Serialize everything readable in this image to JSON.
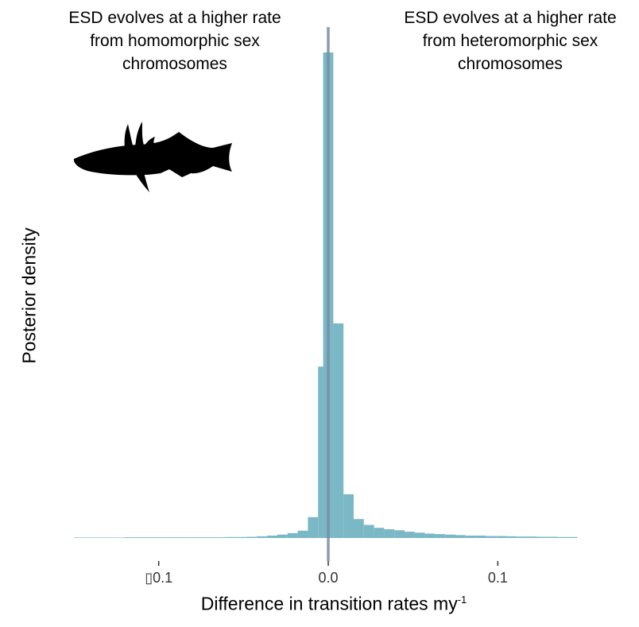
{
  "chart_data": {
    "type": "bar",
    "subtype": "histogram",
    "annotations": {
      "left": [
        "ESD evolves at a higher rate",
        "from homomorphic sex",
        "chromosomes"
      ],
      "right": [
        "ESD evolves at a higher rate",
        "from heteromorphic sex",
        "chromosomes"
      ]
    },
    "xlabel": "Difference in transition rates my",
    "xlabel_superscript": "-1",
    "ylabel": "Posterior density",
    "xlim": [
      -0.15,
      0.15
    ],
    "ylim": [
      0,
      100
    ],
    "x_ticks": [
      {
        "value": -0.1,
        "label": "▯0.1"
      },
      {
        "value": 0.0,
        "label": "0.0"
      },
      {
        "value": 0.1,
        "label": "0.1"
      }
    ],
    "grid": false,
    "bin_width": 0.006,
    "bins": [
      {
        "x0": -0.15,
        "value": 0.1
      },
      {
        "x0": -0.144,
        "value": 0.1
      },
      {
        "x0": -0.138,
        "value": 0.1
      },
      {
        "x0": -0.132,
        "value": 0.1
      },
      {
        "x0": -0.126,
        "value": 0.1
      },
      {
        "x0": -0.12,
        "value": 0.15
      },
      {
        "x0": -0.114,
        "value": 0.15
      },
      {
        "x0": -0.108,
        "value": 0.15
      },
      {
        "x0": -0.102,
        "value": 0.15
      },
      {
        "x0": -0.096,
        "value": 0.15
      },
      {
        "x0": -0.09,
        "value": 0.15
      },
      {
        "x0": -0.084,
        "value": 0.15
      },
      {
        "x0": -0.078,
        "value": 0.15
      },
      {
        "x0": -0.072,
        "value": 0.15
      },
      {
        "x0": -0.066,
        "value": 0.15
      },
      {
        "x0": -0.06,
        "value": 0.2
      },
      {
        "x0": -0.054,
        "value": 0.2
      },
      {
        "x0": -0.048,
        "value": 0.25
      },
      {
        "x0": -0.042,
        "value": 0.35
      },
      {
        "x0": -0.036,
        "value": 0.5
      },
      {
        "x0": -0.03,
        "value": 0.7
      },
      {
        "x0": -0.024,
        "value": 1.0
      },
      {
        "x0": -0.018,
        "value": 1.5
      },
      {
        "x0": -0.012,
        "value": 4.3
      },
      {
        "x0": -0.006,
        "value": 35.3
      },
      {
        "x0": -0.003,
        "value": 100.0
      },
      {
        "x0": 0.003,
        "value": 44.2
      },
      {
        "x0": 0.009,
        "value": 9.0
      },
      {
        "x0": 0.015,
        "value": 3.9
      },
      {
        "x0": 0.021,
        "value": 2.7
      },
      {
        "x0": 0.027,
        "value": 2.1
      },
      {
        "x0": 0.033,
        "value": 1.8
      },
      {
        "x0": 0.039,
        "value": 1.6
      },
      {
        "x0": 0.045,
        "value": 1.3
      },
      {
        "x0": 0.051,
        "value": 1.1
      },
      {
        "x0": 0.057,
        "value": 0.9
      },
      {
        "x0": 0.063,
        "value": 0.8
      },
      {
        "x0": 0.069,
        "value": 0.7
      },
      {
        "x0": 0.075,
        "value": 0.6
      },
      {
        "x0": 0.081,
        "value": 0.5
      },
      {
        "x0": 0.087,
        "value": 0.5
      },
      {
        "x0": 0.093,
        "value": 0.4
      },
      {
        "x0": 0.099,
        "value": 0.4
      },
      {
        "x0": 0.105,
        "value": 0.35
      },
      {
        "x0": 0.111,
        "value": 0.3
      },
      {
        "x0": 0.117,
        "value": 0.3
      },
      {
        "x0": 0.123,
        "value": 0.25
      },
      {
        "x0": 0.129,
        "value": 0.25
      },
      {
        "x0": 0.135,
        "value": 0.2
      },
      {
        "x0": 0.141,
        "value": 0.2
      }
    ],
    "reference_line": {
      "x": 0.0
    },
    "colors": {
      "bars": "#7ab8c5",
      "reference_line": "#7a8aa3"
    },
    "icon": "stickleback-fish-silhouette"
  }
}
